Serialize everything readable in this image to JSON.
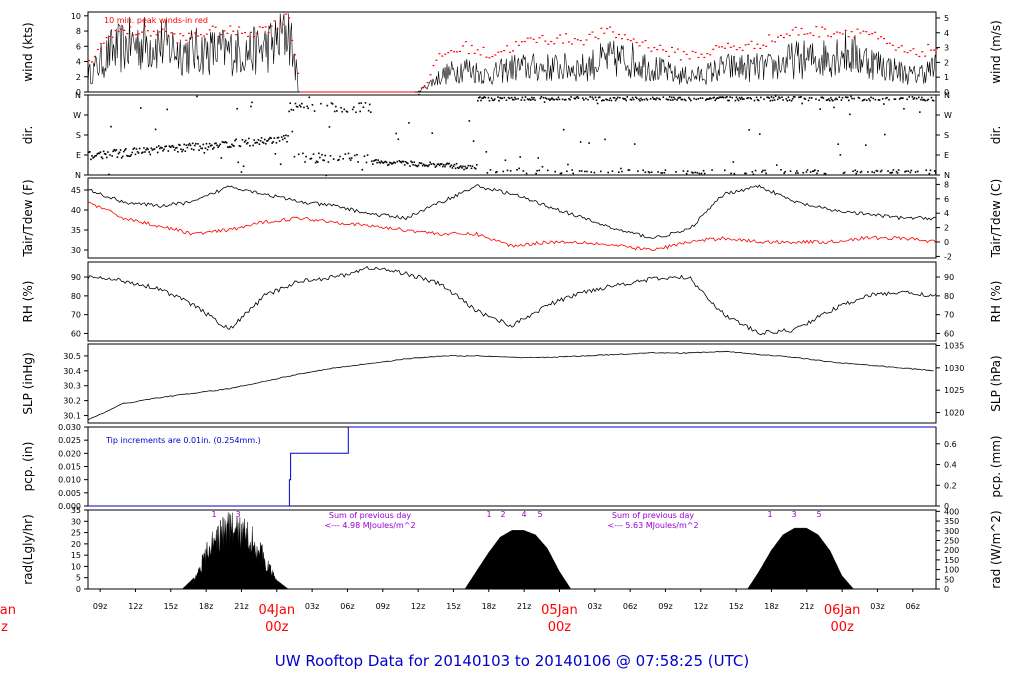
{
  "title": "UW Rooftop Data for 20140103  to  20140106 @ 07:58:25  (UTC)",
  "colors": {
    "black": "#000000",
    "red": "#ff0000",
    "blue": "#0000cc",
    "purple": "#9900cc",
    "footer": "#0000cc"
  },
  "x_axis": {
    "hour_labels": [
      "09z",
      "12z",
      "15z",
      "18z",
      "21z",
      "00z",
      "03z",
      "06z",
      "09z",
      "12z",
      "15z",
      "18z",
      "21z",
      "00z",
      "03z",
      "06z",
      "09z",
      "12z",
      "15z",
      "18z",
      "21z",
      "00z",
      "03z",
      "06z"
    ],
    "days": [
      {
        "label": "04Jan",
        "sub": "00z"
      },
      {
        "label": "05Jan",
        "sub": "00z"
      },
      {
        "label": "06Jan",
        "sub": "00z"
      }
    ],
    "left_clip": {
      "label": "Jan",
      "sub": "z"
    }
  },
  "panels": {
    "wind": {
      "left_title": "wind (kts)",
      "right_title": "wind (m/s)",
      "left_ticks": [
        "0",
        "2",
        "4",
        "6",
        "8",
        "10"
      ],
      "right_ticks": [
        "0",
        "1",
        "2",
        "3",
        "4",
        "5"
      ],
      "annotation": "10 min. peak winds-in red"
    },
    "dir": {
      "left_title": "dir.",
      "right_title": "dir.",
      "ticks": [
        "N",
        "E",
        "S",
        "W",
        "N"
      ]
    },
    "temp": {
      "left_title": "Tair/Tdew (F)",
      "right_title": "Tair/Tdew (C)",
      "left_ticks": [
        "30",
        "35",
        "40",
        "45"
      ],
      "right_ticks": [
        "-2",
        "0",
        "2",
        "4",
        "6",
        "8"
      ]
    },
    "rh": {
      "left_title": "RH (%)",
      "right_title": "RH (%)",
      "left_ticks": [
        "60",
        "70",
        "80",
        "90"
      ],
      "right_ticks": [
        "60",
        "70",
        "80",
        "90"
      ]
    },
    "slp": {
      "left_title": "SLP (inHg)",
      "right_title": "SLP (hPa)",
      "left_ticks": [
        "30.1",
        "30.2",
        "30.3",
        "30.4",
        "30.5"
      ],
      "right_ticks": [
        "1020",
        "1025",
        "1030",
        "1035"
      ]
    },
    "pcp": {
      "left_title": "pcp. (in)",
      "right_title": "pcp. (mm)",
      "left_ticks": [
        "0.000",
        "0.005",
        "0.010",
        "0.015",
        "0.020",
        "0.025",
        "0.030"
      ],
      "right_ticks": [
        "0",
        "0.2",
        "0.4",
        "0.6"
      ],
      "annotation": "Tip increments are 0.01in. (0.254mm.)"
    },
    "rad": {
      "left_title": "rad(Lgly/hr)",
      "right_title": "rad (W/m^2)",
      "left_ticks": [
        "0",
        "5",
        "10",
        "15",
        "20",
        "25",
        "30",
        "35"
      ],
      "right_ticks": [
        "0",
        "50",
        "100",
        "150",
        "200",
        "250",
        "300",
        "350",
        "400"
      ],
      "notes": [
        {
          "line1": "Sum of previous day",
          "line2": "<--- 4.98 MJoules/m^2"
        },
        {
          "line1": "Sum of previous day",
          "line2": "<--- 5.63 MJoules/m^2"
        }
      ],
      "markers": [
        "1",
        "3",
        "1",
        "2",
        "4",
        "5",
        "1",
        "3",
        "5"
      ]
    }
  },
  "chart_data": {
    "type": "line",
    "title": "UW Rooftop Data for 20140103  to  20140106 @ 07:58:25  (UTC)",
    "x_range_hours": [
      0,
      72
    ],
    "x_start": "2014-01-03 07:58 UTC",
    "series": [
      {
        "name": "wind (kts)",
        "panel": "wind",
        "ylim": [
          0,
          10.5
        ],
        "x": [
          0,
          2,
          4,
          6,
          8,
          10,
          12,
          14,
          16,
          17,
          18,
          20,
          22,
          24,
          26,
          28,
          30,
          32,
          34,
          36,
          38,
          40,
          42,
          44,
          46,
          48,
          50,
          52,
          54,
          56,
          58,
          60,
          62,
          64,
          66,
          68,
          70,
          72
        ],
        "values": [
          2,
          5,
          6,
          6,
          5,
          5,
          5,
          5,
          6,
          8,
          0,
          1,
          0,
          0,
          0,
          0,
          2,
          3,
          2,
          3,
          3,
          3,
          3,
          4,
          4,
          3,
          2,
          2,
          3,
          3,
          3,
          4,
          4,
          5,
          4,
          3,
          2,
          3
        ]
      },
      {
        "name": "peak wind (kts)",
        "panel": "wind",
        "color": "red",
        "x": [
          0,
          2,
          4,
          6,
          8,
          10,
          12,
          14,
          16,
          17,
          18,
          20,
          22,
          24,
          26,
          28,
          30,
          32,
          34,
          36,
          38,
          40,
          42,
          44,
          46,
          48,
          50,
          52,
          54,
          56,
          58,
          60,
          62,
          64,
          66,
          68,
          70,
          72
        ],
        "values": [
          4,
          8,
          8,
          8,
          7,
          8,
          8,
          8,
          9,
          10,
          0,
          2,
          0,
          0,
          0,
          0,
          5,
          6,
          5,
          6,
          7,
          7,
          7,
          8,
          7,
          6,
          5,
          5,
          6,
          6,
          7,
          8,
          8,
          8,
          8,
          6,
          5,
          6
        ]
      },
      {
        "name": "wind direction",
        "panel": "dir",
        "yticks": [
          "N",
          "E",
          "S",
          "W",
          "N"
        ],
        "x": [
          0,
          3,
          6,
          9,
          12,
          15,
          18,
          20,
          22,
          24,
          26,
          28,
          30,
          32,
          34,
          36,
          38,
          40,
          42,
          44,
          46,
          48,
          50,
          52,
          54,
          56,
          58,
          60,
          62,
          64,
          66,
          68,
          70,
          72
        ],
        "values": [
          "E",
          "E",
          "E",
          "E",
          "E",
          "E",
          "W",
          "E",
          "W",
          "W",
          "E",
          "E",
          "E",
          "E",
          "N",
          "N",
          "N",
          "N",
          "N",
          "N",
          "N",
          "N",
          "N",
          "N",
          "N",
          "N",
          "N",
          "N",
          "N",
          "N",
          "N",
          "N",
          "N",
          "N"
        ]
      },
      {
        "name": "Tair (F)",
        "panel": "temp",
        "ylim": [
          28,
          48
        ],
        "x": [
          0,
          3,
          6,
          9,
          12,
          15,
          18,
          21,
          24,
          27,
          30,
          33,
          36,
          39,
          42,
          45,
          48,
          51,
          54,
          57,
          60,
          63,
          66,
          69,
          72
        ],
        "values": [
          45,
          42,
          41,
          42,
          46,
          44,
          42,
          41,
          39,
          38,
          42,
          46,
          44,
          41,
          38,
          35,
          33,
          35,
          44,
          46,
          42,
          40,
          39,
          38,
          38
        ]
      },
      {
        "name": "Tdew (F)",
        "panel": "temp",
        "color": "red",
        "x": [
          0,
          3,
          6,
          9,
          12,
          15,
          18,
          21,
          24,
          27,
          30,
          33,
          36,
          39,
          42,
          45,
          48,
          51,
          54,
          57,
          60,
          63,
          66,
          69,
          72
        ],
        "values": [
          42,
          38,
          36,
          34,
          35,
          37,
          38,
          37,
          36,
          35,
          34,
          34,
          31,
          32,
          32,
          31,
          30,
          32,
          33,
          32,
          32,
          32,
          33,
          33,
          32
        ]
      },
      {
        "name": "RH (%)",
        "panel": "rh",
        "ylim": [
          56,
          98
        ],
        "x": [
          0,
          3,
          6,
          9,
          12,
          15,
          18,
          21,
          24,
          27,
          30,
          33,
          36,
          39,
          42,
          45,
          48,
          51,
          54,
          57,
          60,
          63,
          66,
          69,
          72
        ],
        "values": [
          90,
          88,
          84,
          75,
          62,
          80,
          88,
          90,
          95,
          92,
          86,
          72,
          64,
          75,
          82,
          86,
          89,
          90,
          70,
          60,
          62,
          72,
          80,
          82,
          80
        ]
      },
      {
        "name": "SLP (inHg)",
        "panel": "slp",
        "ylim": [
          30.05,
          30.58
        ],
        "x": [
          0,
          3,
          6,
          9,
          12,
          15,
          18,
          21,
          24,
          27,
          30,
          33,
          36,
          39,
          42,
          45,
          48,
          51,
          54,
          57,
          60,
          63,
          66,
          69,
          72
        ],
        "values": [
          30.07,
          30.18,
          30.22,
          30.25,
          30.28,
          30.33,
          30.38,
          30.42,
          30.45,
          30.48,
          30.5,
          30.5,
          30.49,
          30.49,
          30.5,
          30.51,
          30.52,
          30.52,
          30.53,
          30.51,
          30.49,
          30.46,
          30.44,
          30.42,
          30.4
        ]
      },
      {
        "name": "pcp (in)",
        "panel": "pcp",
        "ylim": [
          0,
          0.03
        ],
        "x": [
          0,
          17.0,
          17.1,
          17.2,
          22.0,
          22.1,
          72
        ],
        "values": [
          0,
          0,
          0.01,
          0.02,
          0.02,
          0.03,
          0.03
        ]
      },
      {
        "name": "rad (Lgly/hr)",
        "panel": "rad",
        "ylim": [
          0,
          35
        ],
        "x": [
          0,
          8,
          9,
          10,
          11,
          12,
          13,
          14,
          15,
          16,
          17,
          24,
          32,
          33,
          34,
          35,
          36,
          37,
          38,
          39,
          40,
          41,
          48,
          56,
          57,
          58,
          59,
          60,
          61,
          62,
          63,
          64,
          65,
          72
        ],
        "values": [
          0,
          0,
          5,
          18,
          28,
          32,
          30,
          26,
          16,
          4,
          0,
          0,
          0,
          8,
          16,
          23,
          26,
          26,
          24,
          18,
          8,
          0,
          0,
          0,
          8,
          17,
          24,
          27,
          27,
          24,
          17,
          6,
          0,
          0
        ]
      }
    ]
  }
}
